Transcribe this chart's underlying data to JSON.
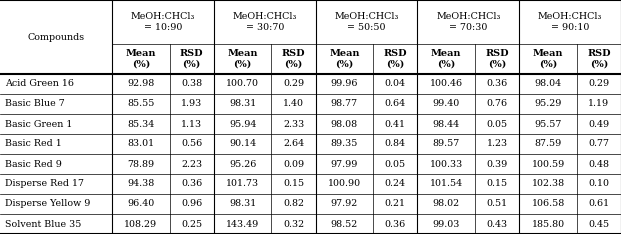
{
  "compounds": [
    "Acid Green 16",
    "Basic Blue 7",
    "Basic Green 1",
    "Basic Red 1",
    "Basic Red 9",
    "Disperse Red 17",
    "Disperse Yellow 9",
    "Solvent Blue 35"
  ],
  "col_groups": [
    "MeOH:CHCl₃\n= 10:90",
    "MeOH:CHCl₃\n= 30:70",
    "MeOH:CHCl₃\n= 50:50",
    "MeOH:CHCl₃\n= 70:30",
    "MeOH:CHCl₃\n= 90:10"
  ],
  "subheaders": [
    "Mean\n(%)",
    "RSD\n(%)"
  ],
  "data": [
    [
      92.98,
      0.38,
      100.7,
      0.29,
      99.96,
      0.04,
      100.46,
      0.36,
      98.04,
      0.29
    ],
    [
      85.55,
      1.93,
      98.31,
      1.4,
      98.77,
      0.64,
      99.4,
      0.76,
      95.29,
      1.19
    ],
    [
      85.34,
      1.13,
      95.94,
      2.33,
      98.08,
      0.41,
      98.44,
      0.05,
      95.57,
      0.49
    ],
    [
      83.01,
      0.56,
      90.14,
      2.64,
      89.35,
      0.84,
      89.57,
      1.23,
      87.59,
      0.77
    ],
    [
      78.89,
      2.23,
      95.26,
      0.09,
      97.99,
      0.05,
      100.33,
      0.39,
      100.59,
      0.48
    ],
    [
      94.38,
      0.36,
      101.73,
      0.15,
      100.9,
      0.24,
      101.54,
      0.15,
      102.38,
      0.1
    ],
    [
      96.4,
      0.96,
      98.31,
      0.82,
      97.92,
      0.21,
      98.02,
      0.51,
      106.58,
      0.61
    ],
    [
      108.29,
      0.25,
      143.49,
      0.32,
      98.52,
      0.36,
      99.03,
      0.43,
      185.8,
      0.45
    ]
  ],
  "font_family": "serif",
  "font_size": 6.8,
  "bold_font_size": 7.0,
  "text_color": "#000000",
  "bg_color": "#ffffff",
  "thick_lw": 1.5,
  "thin_lw": 0.5,
  "med_lw": 0.8,
  "col_widths_rel": [
    1.65,
    0.85,
    0.65,
    0.85,
    0.65,
    0.85,
    0.65,
    0.85,
    0.65,
    0.85,
    0.65
  ],
  "row_heights_rel": [
    2.2,
    1.5,
    1.0,
    1.0,
    1.0,
    1.0,
    1.0,
    1.0,
    1.0,
    1.0
  ]
}
